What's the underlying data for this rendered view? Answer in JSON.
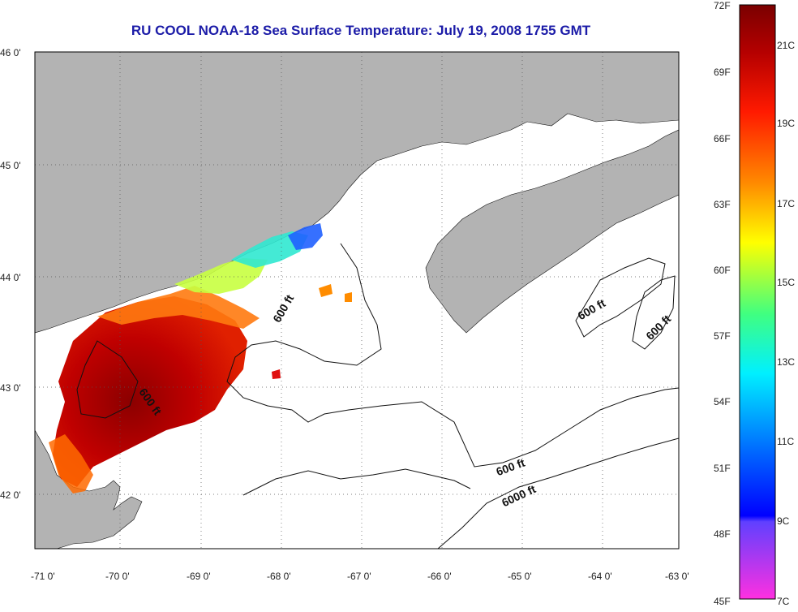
{
  "title": "RU COOL  NOAA-18  Sea Surface Temperature:  July 19, 2008 1755 GMT",
  "map": {
    "lon_range": [
      -71,
      -63
    ],
    "lat_range": [
      41.5,
      46
    ],
    "lon_ticks": [
      "-71 0'",
      "-70 0'",
      "-69 0'",
      "-68 0'",
      "-67 0'",
      "-66 0'",
      "-65 0'",
      "-64 0'",
      "-63 0'"
    ],
    "lat_ticks": [
      "46 0'",
      "45 0'",
      "44 0'",
      "43 0'",
      "42 0'"
    ],
    "land_color": "#b3b3b3",
    "water_color": "#ffffff",
    "gridlines": "dotted",
    "contours": [
      {
        "label": "600 ft"
      },
      {
        "label": "600 ft"
      },
      {
        "label": "600 ft"
      },
      {
        "label": "600 ft"
      },
      {
        "label": "600 ft"
      },
      {
        "label": "6000 ft"
      }
    ]
  },
  "colorbar": {
    "fahrenheit_labels": [
      "72F",
      "69F",
      "66F",
      "63F",
      "60F",
      "57F",
      "54F",
      "51F",
      "48F",
      "45F"
    ],
    "celsius_labels": [
      "21C",
      "19C",
      "17C",
      "15C",
      "13C",
      "11C",
      "9C",
      "7C"
    ],
    "colors": [
      "#8b0000",
      "#ff0000",
      "#ff7a00",
      "#ffff00",
      "#00ff7a",
      "#00e5ff",
      "#0000ff",
      "#b030ff",
      "#ff40e0"
    ]
  }
}
